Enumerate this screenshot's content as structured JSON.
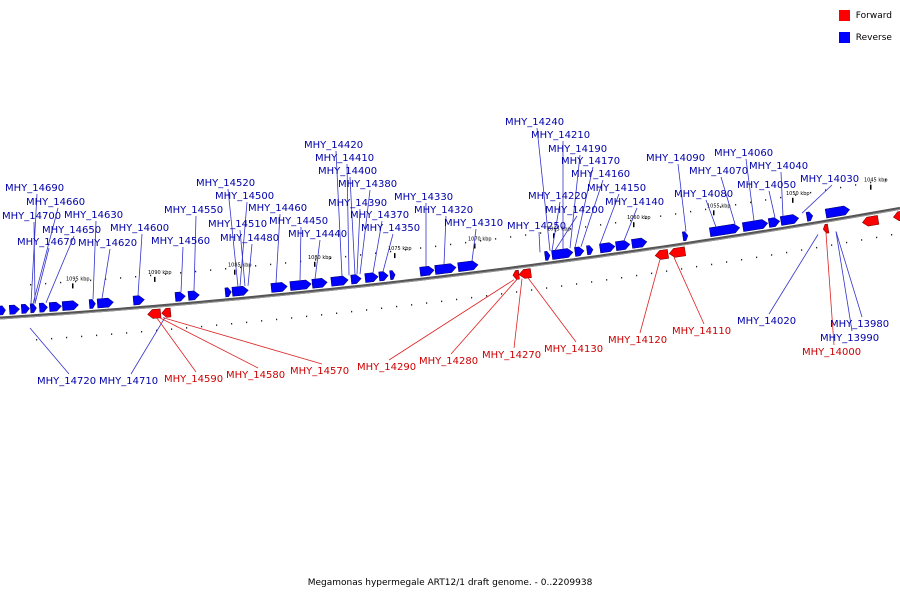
{
  "caption": "Megamonas hypermegale ART12/1 draft genome. - 0..2209938",
  "legend": [
    {
      "label": "Forward",
      "color": "#ff0000"
    },
    {
      "label": "Reverse",
      "color": "#0000ff"
    }
  ],
  "colors": {
    "forward": "#ff0000",
    "reverse": "#0000ff",
    "forward_label": "#cc0000",
    "reverse_label": "#0000aa",
    "backbone": "#555555"
  },
  "scale_labels": [
    "1095 kbp",
    "1090 kbp",
    "1085 kbp",
    "1080 kbp",
    "1075 kbp",
    "1070 kbp",
    "1065 kbp",
    "1060 kbp",
    "1055 kbp",
    "1050 kbp",
    "1045 kbp"
  ],
  "reverse_labels": [
    "MHY_14690",
    "MHY_14660",
    "MHY_14700",
    "MHY_14650",
    "MHY_14630",
    "MHY_14670",
    "MHY_14620",
    "MHY_14600",
    "MHY_14560",
    "MHY_14550",
    "MHY_14520",
    "MHY_14500",
    "MHY_14510",
    "MHY_14480",
    "MHY_14460",
    "MHY_14450",
    "MHY_14440",
    "MHY_14420",
    "MHY_14410",
    "MHY_14400",
    "MHY_14380",
    "MHY_14390",
    "MHY_14370",
    "MHY_14350",
    "MHY_14330",
    "MHY_14320",
    "MHY_14310",
    "MHY_14240",
    "MHY_14210",
    "MHY_14190",
    "MHY_14170",
    "MHY_14160",
    "MHY_14150",
    "MHY_14220",
    "MHY_14200",
    "MHY_14140",
    "MHY_14250",
    "MHY_14090",
    "MHY_14080",
    "MHY_14060",
    "MHY_14070",
    "MHY_14040",
    "MHY_14050",
    "MHY_14030",
    "MHY_14020",
    "MHY_13980",
    "MHY_13990",
    "MHY_14720",
    "MHY_14710"
  ],
  "forward_labels": [
    "MHY_14590",
    "MHY_14580",
    "MHY_14570",
    "MHY_14290",
    "MHY_14280",
    "MHY_14270",
    "MHY_14130",
    "MHY_14120",
    "MHY_14110",
    "MHY_14000"
  ]
}
